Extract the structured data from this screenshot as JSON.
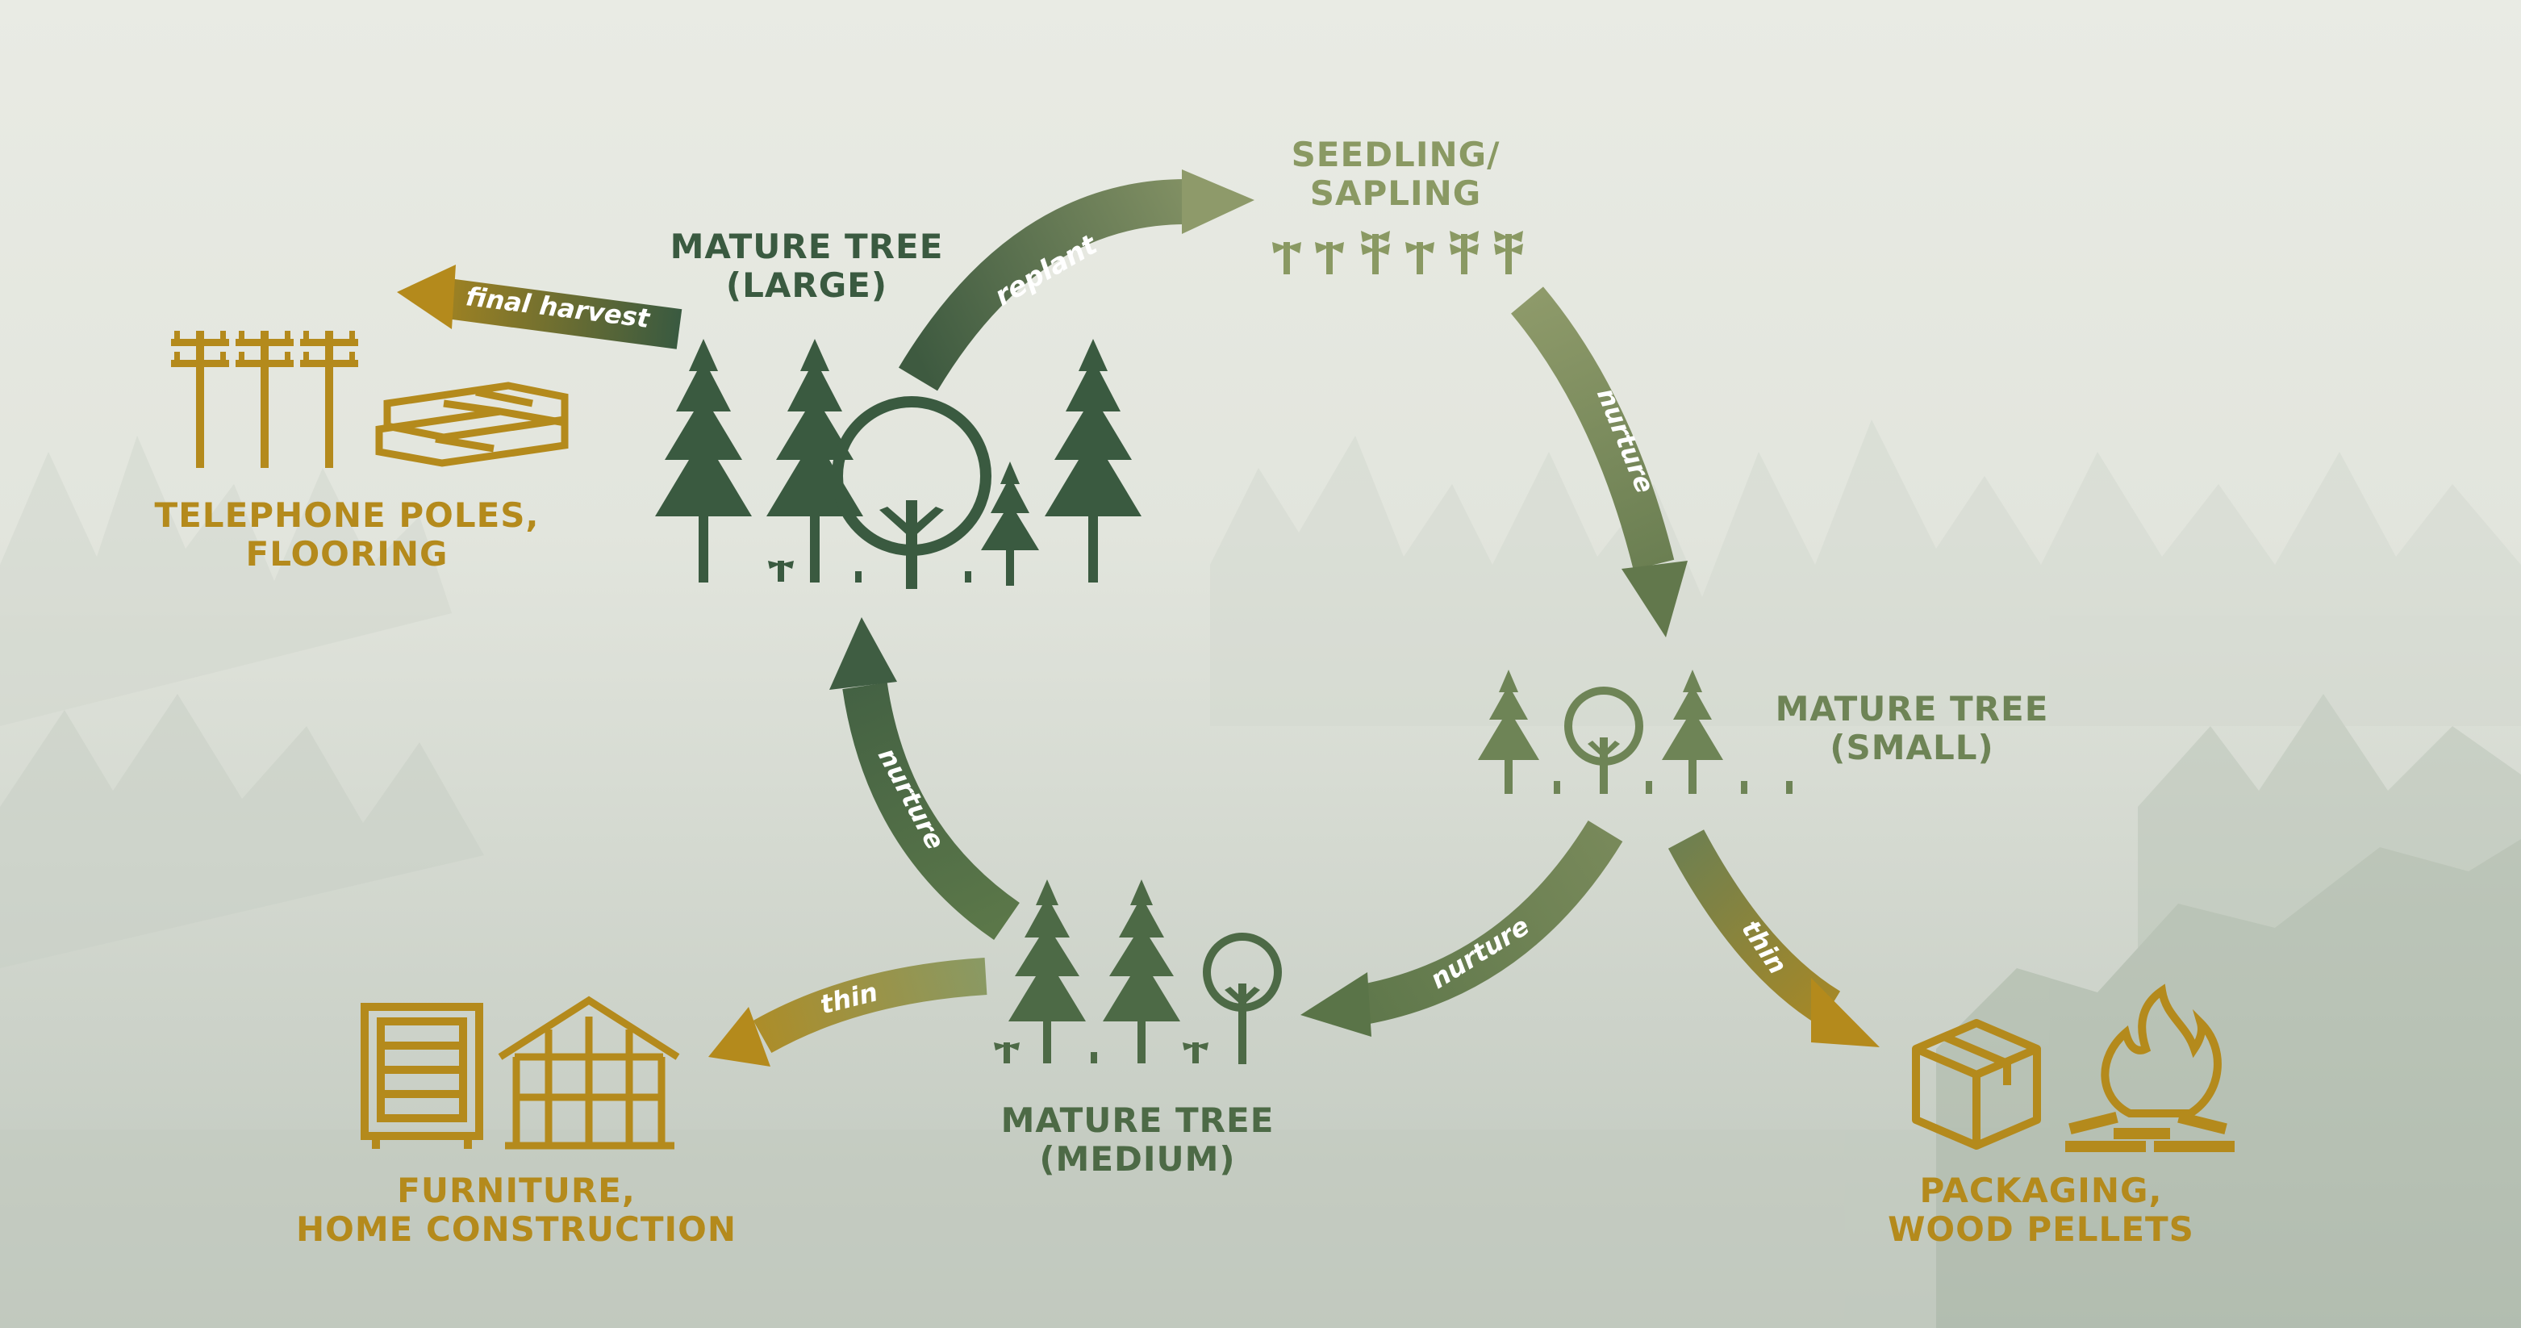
{
  "colors": {
    "dark_green": "#3a5a40",
    "mid_green": "#5e7a4c",
    "light_green": "#8a9963",
    "gold": "#b48a1c",
    "background": "#e4e7df"
  },
  "stages": {
    "seedling": {
      "line1": "SEEDLING/",
      "line2": "SAPLING"
    },
    "small": {
      "line1": "MATURE TREE",
      "line2": "(SMALL)"
    },
    "medium": {
      "line1": "MATURE TREE",
      "line2": "(MEDIUM)"
    },
    "large": {
      "line1": "MATURE TREE",
      "line2": "(LARGE)"
    }
  },
  "products": {
    "poles": {
      "line1": "TELEPHONE POLES,",
      "line2": "FLOORING"
    },
    "furniture": {
      "line1": "FURNITURE,",
      "line2": "HOME CONSTRUCTION"
    },
    "packaging": {
      "line1": "PACKAGING,",
      "line2": "WOOD PELLETS"
    }
  },
  "arrows": {
    "replant": "replant",
    "nurture_1": "nurture",
    "nurture_2": "nurture",
    "nurture_3": "nurture",
    "thin_1": "thin",
    "thin_2": "thin",
    "final_harvest": "final harvest"
  },
  "icons": {
    "seedling": "seedling-icon",
    "conifer": "conifer-tree-icon",
    "deciduous": "deciduous-tree-icon",
    "pole": "telephone-pole-icon",
    "planks": "wood-planks-icon",
    "cabinet": "cabinet-icon",
    "house_frame": "house-frame-icon",
    "box": "box-icon",
    "fire": "fire-icon"
  }
}
